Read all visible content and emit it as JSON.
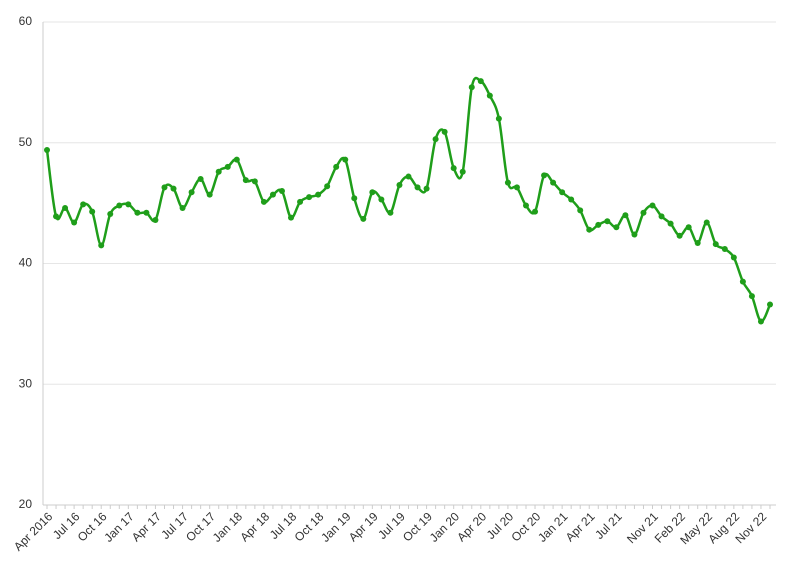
{
  "chart_data": {
    "type": "line",
    "categories": [
      "Apr 2016",
      null,
      null,
      "Jul 16",
      null,
      null,
      "Oct 16",
      null,
      null,
      "Jan 17",
      null,
      null,
      "Apr 17",
      null,
      null,
      "Jul 17",
      null,
      null,
      "Oct 17",
      null,
      null,
      "Jan 18",
      null,
      null,
      "Apr 18",
      null,
      null,
      "Jul 18",
      null,
      null,
      "Oct 18",
      null,
      null,
      "Jan 19",
      null,
      null,
      "Apr 19",
      null,
      null,
      "Jul 19",
      null,
      null,
      "Oct 19",
      null,
      null,
      "Jan 20",
      null,
      null,
      "Apr 20",
      null,
      null,
      "Jul 20",
      null,
      null,
      "Oct 20",
      null,
      null,
      "Jan 21",
      null,
      null,
      "Apr 21",
      null,
      null,
      "Jul 21",
      null,
      null,
      null,
      "Nov 21",
      null,
      null,
      "Feb 22",
      null,
      null,
      "May 22",
      null,
      null,
      "Aug 22",
      null,
      null,
      "Nov 22",
      null
    ],
    "values": [
      49.4,
      43.9,
      44.6,
      43.4,
      44.9,
      44.3,
      41.5,
      44.1,
      44.8,
      44.9,
      44.2,
      44.2,
      43.6,
      46.3,
      46.2,
      44.6,
      45.9,
      47.0,
      45.7,
      47.6,
      48.0,
      48.6,
      46.9,
      46.8,
      45.1,
      45.7,
      46.0,
      43.8,
      45.1,
      45.5,
      45.7,
      46.4,
      48.0,
      48.6,
      45.4,
      43.7,
      45.9,
      45.3,
      44.2,
      46.5,
      47.2,
      46.3,
      46.2,
      50.3,
      50.9,
      47.9,
      47.6,
      54.6,
      55.1,
      53.9,
      52.0,
      46.7,
      46.3,
      44.8,
      44.3,
      47.3,
      46.7,
      45.9,
      45.3,
      44.4,
      42.8,
      43.2,
      43.5,
      43.0,
      44.0,
      42.4,
      44.2,
      44.8,
      43.9,
      43.3,
      42.3,
      43.0,
      41.7,
      43.4,
      41.6,
      41.2,
      40.5,
      38.5,
      37.3,
      35.2,
      36.6
    ],
    "color": "#1f9e1a",
    "ylim": [
      20,
      60
    ],
    "yticks": [
      20,
      30,
      40,
      50,
      60
    ],
    "grid": true
  }
}
